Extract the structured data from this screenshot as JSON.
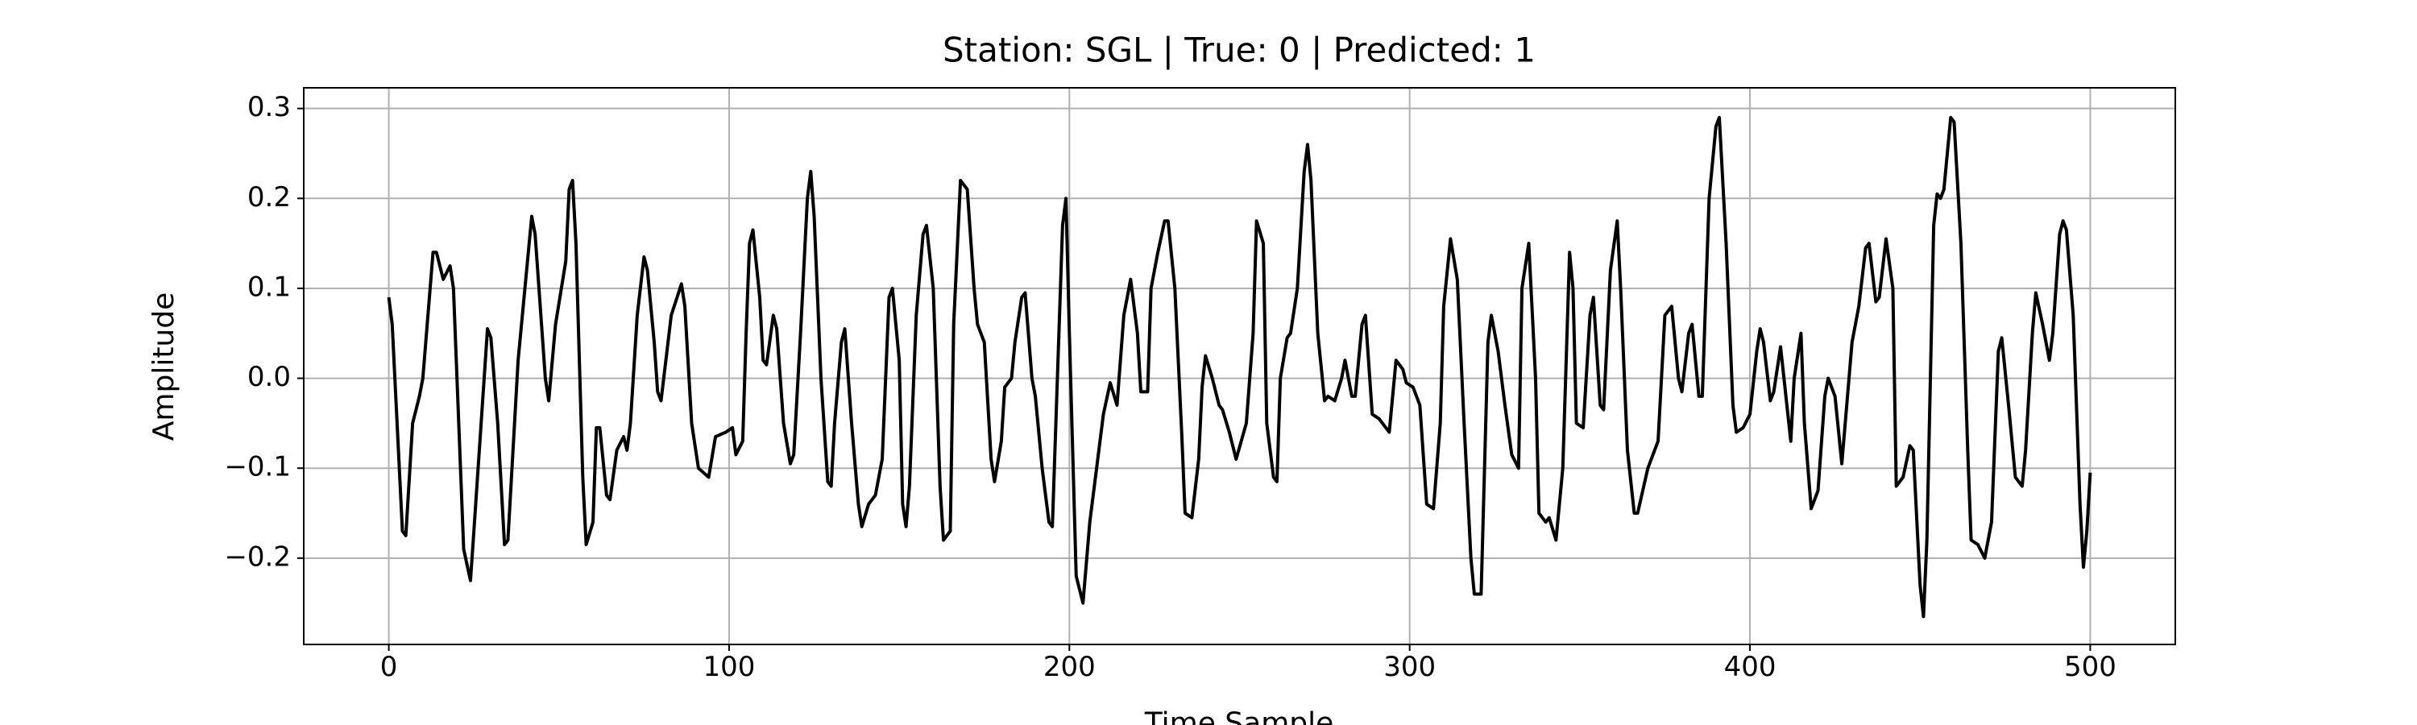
{
  "chart_data": {
    "type": "line",
    "title": "Station: SGL | True: 0 | Predicted: 1",
    "xlabel": "Time Sample",
    "ylabel": "Amplitude",
    "color": "#000000",
    "grid": true,
    "xlim": [
      -25,
      525
    ],
    "ylim": [
      -0.296,
      0.323
    ],
    "xticks": [
      0,
      100,
      200,
      300,
      400,
      500
    ],
    "yticks": [
      {
        "value": -0.2,
        "label": "−0.2"
      },
      {
        "value": -0.1,
        "label": "−0.1"
      },
      {
        "value": 0,
        "label": "0.0"
      },
      0.1,
      0.2,
      0.3
    ],
    "x": [
      0,
      1,
      4,
      5,
      7,
      9,
      10,
      13,
      14,
      16,
      18,
      19,
      22,
      24,
      25,
      29,
      30,
      32,
      34,
      35,
      38,
      42,
      43,
      46,
      47,
      49,
      52,
      53,
      54,
      55,
      57,
      58,
      60,
      61,
      62,
      64,
      65,
      67,
      69,
      70,
      71,
      73,
      75,
      76,
      78,
      79,
      80,
      83,
      86,
      87,
      89,
      91,
      94,
      96,
      99,
      101,
      102,
      104,
      105,
      106,
      107,
      109,
      110,
      111,
      113,
      114,
      116,
      118,
      119,
      121,
      123,
      124,
      125,
      127,
      129,
      130,
      131,
      133,
      134,
      136,
      138,
      139,
      141,
      143,
      145,
      147,
      148,
      150,
      151,
      152,
      153,
      155,
      157,
      158,
      160,
      162,
      163,
      165,
      166,
      168,
      170,
      172,
      173,
      175,
      177,
      178,
      180,
      181,
      183,
      184,
      186,
      187,
      189,
      190,
      192,
      194,
      195,
      198,
      199,
      200,
      202,
      204,
      206,
      208,
      210,
      212,
      214,
      216,
      218,
      220,
      221,
      223,
      224,
      226,
      228,
      229,
      231,
      233,
      234,
      236,
      238,
      239,
      240,
      242,
      244,
      245,
      247,
      249,
      252,
      254,
      255,
      257,
      258,
      260,
      261,
      262,
      264,
      265,
      267,
      269,
      270,
      271,
      273,
      275,
      276,
      278,
      280,
      281,
      283,
      284,
      286,
      287,
      289,
      291,
      293,
      294,
      296,
      298,
      299,
      301,
      303,
      305,
      307,
      309,
      310,
      312,
      314,
      316,
      318,
      319,
      321,
      323,
      324,
      326,
      328,
      330,
      332,
      333,
      335,
      337,
      338,
      340,
      341,
      343,
      345,
      347,
      348,
      349,
      351,
      353,
      354,
      356,
      357,
      359,
      361,
      362,
      364,
      366,
      367,
      370,
      371,
      373,
      375,
      377,
      379,
      380,
      382,
      383,
      385,
      386,
      388,
      390,
      391,
      393,
      395,
      396,
      398,
      400,
      402,
      403,
      404,
      406,
      407,
      409,
      410,
      412,
      413,
      415,
      416,
      418,
      420,
      422,
      423,
      425,
      427,
      428,
      430,
      432,
      434,
      435,
      437,
      438,
      440,
      442,
      443,
      445,
      447,
      448,
      450,
      451,
      452,
      454,
      455,
      456,
      457,
      459,
      460,
      462,
      464,
      465,
      467,
      469,
      471,
      473,
      474,
      476,
      478,
      480,
      481,
      483,
      484,
      486,
      488,
      489,
      491,
      492,
      493,
      495,
      497,
      498,
      499,
      500
    ],
    "values": [
      0.09,
      0.06,
      -0.17,
      -0.175,
      -0.05,
      -0.02,
      0.0,
      0.14,
      0.14,
      0.11,
      0.125,
      0.1,
      -0.19,
      -0.225,
      -0.17,
      0.055,
      0.045,
      -0.05,
      -0.185,
      -0.18,
      0.02,
      0.18,
      0.16,
      0.0,
      -0.025,
      0.06,
      0.13,
      0.21,
      0.22,
      0.15,
      -0.11,
      -0.185,
      -0.16,
      -0.055,
      -0.055,
      -0.13,
      -0.135,
      -0.08,
      -0.065,
      -0.08,
      -0.05,
      0.07,
      0.135,
      0.12,
      0.04,
      -0.015,
      -0.025,
      0.07,
      0.105,
      0.08,
      -0.05,
      -0.1,
      -0.11,
      -0.065,
      -0.06,
      -0.055,
      -0.085,
      -0.07,
      0.05,
      0.15,
      0.165,
      0.09,
      0.02,
      0.015,
      0.07,
      0.055,
      -0.05,
      -0.095,
      -0.085,
      0.05,
      0.2,
      0.23,
      0.18,
      0.0,
      -0.115,
      -0.12,
      -0.05,
      0.04,
      0.055,
      -0.05,
      -0.14,
      -0.165,
      -0.14,
      -0.13,
      -0.09,
      0.09,
      0.1,
      0.02,
      -0.14,
      -0.165,
      -0.12,
      0.07,
      0.16,
      0.17,
      0.1,
      -0.12,
      -0.18,
      -0.17,
      0.06,
      0.22,
      0.21,
      0.1,
      0.06,
      0.04,
      -0.09,
      -0.115,
      -0.07,
      -0.01,
      0.0,
      0.04,
      0.09,
      0.095,
      0.0,
      -0.02,
      -0.1,
      -0.16,
      -0.165,
      0.17,
      0.2,
      0.05,
      -0.22,
      -0.25,
      -0.16,
      -0.1,
      -0.04,
      -0.005,
      -0.03,
      0.07,
      0.11,
      0.05,
      -0.015,
      -0.015,
      0.1,
      0.14,
      0.175,
      0.175,
      0.1,
      -0.06,
      -0.15,
      -0.155,
      -0.09,
      -0.01,
      0.025,
      0.0,
      -0.03,
      -0.035,
      -0.06,
      -0.09,
      -0.05,
      0.05,
      0.175,
      0.15,
      -0.05,
      -0.11,
      -0.115,
      0.0,
      0.045,
      0.05,
      0.1,
      0.23,
      0.26,
      0.22,
      0.05,
      -0.025,
      -0.02,
      -0.025,
      0.0,
      0.02,
      -0.02,
      -0.02,
      0.06,
      0.07,
      -0.04,
      -0.045,
      -0.055,
      -0.06,
      0.02,
      0.01,
      -0.005,
      -0.01,
      -0.03,
      -0.14,
      -0.145,
      -0.05,
      0.08,
      0.155,
      0.11,
      -0.05,
      -0.2,
      -0.24,
      -0.24,
      0.04,
      0.07,
      0.03,
      -0.03,
      -0.085,
      -0.1,
      0.1,
      0.15,
      0.0,
      -0.15,
      -0.16,
      -0.155,
      -0.18,
      -0.1,
      0.14,
      0.1,
      -0.05,
      -0.055,
      0.07,
      0.09,
      -0.03,
      -0.035,
      0.12,
      0.175,
      0.1,
      -0.08,
      -0.15,
      -0.15,
      -0.1,
      -0.09,
      -0.07,
      0.07,
      0.08,
      0.0,
      -0.015,
      0.05,
      0.06,
      -0.02,
      -0.02,
      0.2,
      0.28,
      0.29,
      0.15,
      -0.03,
      -0.06,
      -0.055,
      -0.04,
      0.03,
      0.055,
      0.04,
      -0.025,
      -0.015,
      0.035,
      0.0,
      -0.07,
      0.0,
      0.05,
      -0.05,
      -0.145,
      -0.125,
      -0.02,
      0.0,
      -0.02,
      -0.095,
      -0.05,
      0.04,
      0.08,
      0.145,
      0.15,
      0.085,
      0.09,
      0.155,
      0.1,
      -0.12,
      -0.11,
      -0.075,
      -0.08,
      -0.23,
      -0.265,
      -0.18,
      0.17,
      0.205,
      0.2,
      0.21,
      0.29,
      0.285,
      0.15,
      -0.08,
      -0.18,
      -0.185,
      -0.2,
      -0.16,
      0.03,
      0.045,
      -0.03,
      -0.11,
      -0.12,
      -0.08,
      0.05,
      0.095,
      0.06,
      0.02,
      0.05,
      0.16,
      0.175,
      0.165,
      0.07,
      -0.14,
      -0.21,
      -0.17,
      -0.105
    ]
  }
}
